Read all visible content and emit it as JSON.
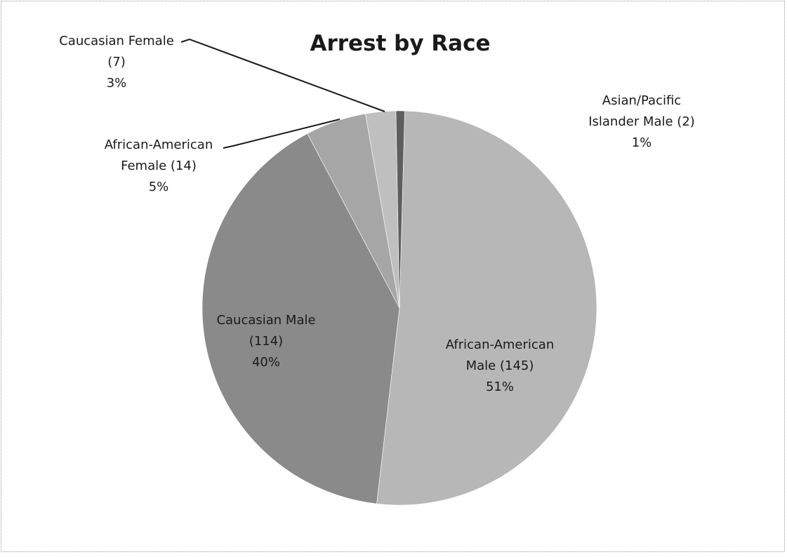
{
  "chart_data": {
    "type": "pie",
    "title": "Arrest by Race",
    "start_angle_deg": 0,
    "direction": "clockwise",
    "slices": [
      {
        "key": "african-american-male",
        "name": "African-American Male",
        "value": 145,
        "percent": "51%",
        "label_lines": [
          "African-American",
          "Male (145)",
          "51%"
        ],
        "color": "#b7b7b7"
      },
      {
        "key": "caucasian-male",
        "name": "Caucasian Male",
        "value": 114,
        "percent": "40%",
        "label_lines": [
          "Caucasian Male",
          "(114)",
          "40%"
        ],
        "color": "#8a8a8a"
      },
      {
        "key": "african-american-female",
        "name": "African-American Female",
        "value": 14,
        "percent": "5%",
        "label_lines": [
          "African-American",
          "Female (14)",
          "5%"
        ],
        "color": "#a6a6a6"
      },
      {
        "key": "caucasian-female",
        "name": "Caucasian Female",
        "value": 7,
        "percent": "3%",
        "label_lines": [
          "Caucasian Female",
          "(7)",
          "3%"
        ],
        "color": "#bfbfbf"
      },
      {
        "key": "asian-pacific-islander-male",
        "name": "Asian/Pacific Islander Male",
        "value": 2,
        "percent": "1%",
        "label_lines": [
          "Asian/Pacific",
          "Islander Male (2)",
          "1%"
        ],
        "color": "#5e5e5e"
      }
    ]
  }
}
